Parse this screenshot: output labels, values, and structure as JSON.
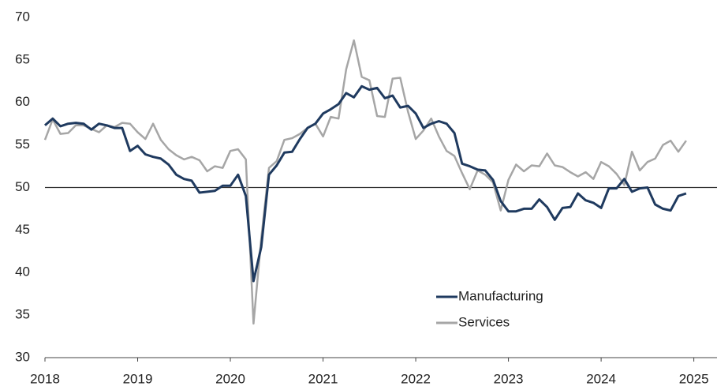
{
  "chart_data": {
    "type": "line",
    "x": [
      2018,
      2018.083,
      2018.167,
      2018.25,
      2018.333,
      2018.417,
      2018.5,
      2018.583,
      2018.667,
      2018.75,
      2018.833,
      2018.917,
      2019,
      2019.083,
      2019.167,
      2019.25,
      2019.333,
      2019.417,
      2019.5,
      2019.583,
      2019.667,
      2019.75,
      2019.833,
      2019.917,
      2020,
      2020.083,
      2020.167,
      2020.25,
      2020.333,
      2020.417,
      2020.5,
      2020.583,
      2020.667,
      2020.75,
      2020.833,
      2020.917,
      2021,
      2021.083,
      2021.167,
      2021.25,
      2021.333,
      2021.417,
      2021.5,
      2021.583,
      2021.667,
      2021.75,
      2021.833,
      2021.917,
      2022,
      2022.083,
      2022.167,
      2022.25,
      2022.333,
      2022.417,
      2022.5,
      2022.583,
      2022.667,
      2022.75,
      2022.833,
      2022.917,
      2023,
      2023.083,
      2023.167,
      2023.25,
      2023.333,
      2023.417,
      2023.5,
      2023.583,
      2023.667,
      2023.75,
      2023.833,
      2023.917,
      2024,
      2024.083,
      2024.167,
      2024.25,
      2024.333,
      2024.417,
      2024.5,
      2024.583,
      2024.667,
      2024.75,
      2024.833,
      2024.917
    ],
    "series": [
      {
        "name": "Services",
        "color": "#a6a6a6",
        "values": [
          55.6,
          58.0,
          56.3,
          56.4,
          57.3,
          57.3,
          56.9,
          56.5,
          57.3,
          57.1,
          57.6,
          57.5,
          56.5,
          55.7,
          57.5,
          55.6,
          54.5,
          53.8,
          53.3,
          53.6,
          53.2,
          51.9,
          52.5,
          52.3,
          54.3,
          54.5,
          53.3,
          34.0,
          44.0,
          52.3,
          53.1,
          55.6,
          55.8,
          56.3,
          57.0,
          57.5,
          56.0,
          58.3,
          58.1,
          63.9,
          67.3,
          63.0,
          62.6,
          58.4,
          58.3,
          62.8,
          62.9,
          58.9,
          55.7,
          56.7,
          58.1,
          56.0,
          54.3,
          53.7,
          51.7,
          49.8,
          52.0,
          51.5,
          50.6,
          47.3,
          50.9,
          52.7,
          51.9,
          52.6,
          52.5,
          54.0,
          52.6,
          52.4,
          51.8,
          51.3,
          51.8,
          51.0,
          53.0,
          52.5,
          51.6,
          50.3,
          54.2,
          52.0,
          53.0,
          53.4,
          55.0,
          55.5,
          54.2,
          55.5
        ]
      },
      {
        "name": "Manufacturing",
        "color": "#1f3a5f",
        "values": [
          57.3,
          58.1,
          57.2,
          57.5,
          57.6,
          57.5,
          56.8,
          57.5,
          57.3,
          57.0,
          57.0,
          54.3,
          54.9,
          53.9,
          53.6,
          53.4,
          52.7,
          51.5,
          51.0,
          50.8,
          49.4,
          49.5,
          49.6,
          50.2,
          50.2,
          51.5,
          49.0,
          39.0,
          43.0,
          51.5,
          52.6,
          54.1,
          54.2,
          55.7,
          57.0,
          57.5,
          58.7,
          59.2,
          59.8,
          61.1,
          60.6,
          61.9,
          61.5,
          61.7,
          60.5,
          60.8,
          59.4,
          59.6,
          58.7,
          57.0,
          57.5,
          57.8,
          57.5,
          56.4,
          52.8,
          52.5,
          52.1,
          52.0,
          50.9,
          48.4,
          47.2,
          47.2,
          47.5,
          47.5,
          48.6,
          47.7,
          46.2,
          47.6,
          47.7,
          49.3,
          48.5,
          48.2,
          47.6,
          49.9,
          49.9,
          51.0,
          49.5,
          49.9,
          50.0,
          48.0,
          47.5,
          47.3,
          49.0,
          49.3
        ]
      }
    ],
    "legend_order": [
      1,
      0
    ],
    "xlim": [
      2018,
      2025.25
    ],
    "xticks": [
      2018,
      2019,
      2020,
      2021,
      2022,
      2023,
      2024,
      2025
    ],
    "ylim": [
      30,
      70
    ],
    "yticks": [
      30,
      35,
      40,
      45,
      50,
      55,
      60,
      65,
      70
    ],
    "reference_line": 50,
    "grid": false
  }
}
